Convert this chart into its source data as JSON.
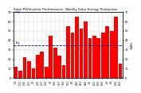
{
  "title": "Weekly Solar Energy Production",
  "subtitle": "Solar PV/Inverter Performance",
  "ylabel": "kWh",
  "bar_color": "#ff0000",
  "avg_line_color": "#000080",
  "background_color": "#ffffff",
  "plot_bg_color": "#ffffff",
  "grid_color": "#888888",
  "weeks": [
    "1/6",
    "1/13",
    "1/20",
    "1/27",
    "2/3",
    "2/10",
    "2/17",
    "2/24",
    "3/3",
    "3/10",
    "3/17",
    "3/24",
    "3/31",
    "4/7",
    "4/14",
    "4/21",
    "4/28",
    "5/5",
    "5/12",
    "5/19",
    "5/26",
    "6/2",
    "6/9",
    "6/16",
    "6/23"
  ],
  "values": [
    12,
    8,
    22,
    18,
    10,
    25,
    28,
    12,
    45,
    32,
    24,
    14,
    55,
    48,
    65,
    52,
    60,
    42,
    45,
    42,
    48,
    55,
    50,
    65,
    15
  ],
  "avg_value": 35,
  "ylim": [
    0,
    70
  ],
  "yticks": [
    0,
    10,
    20,
    30,
    40,
    50,
    60,
    70
  ],
  "title_fontsize": 3.0,
  "tick_fontsize": 2.5,
  "xtick_fontsize": 2.0
}
